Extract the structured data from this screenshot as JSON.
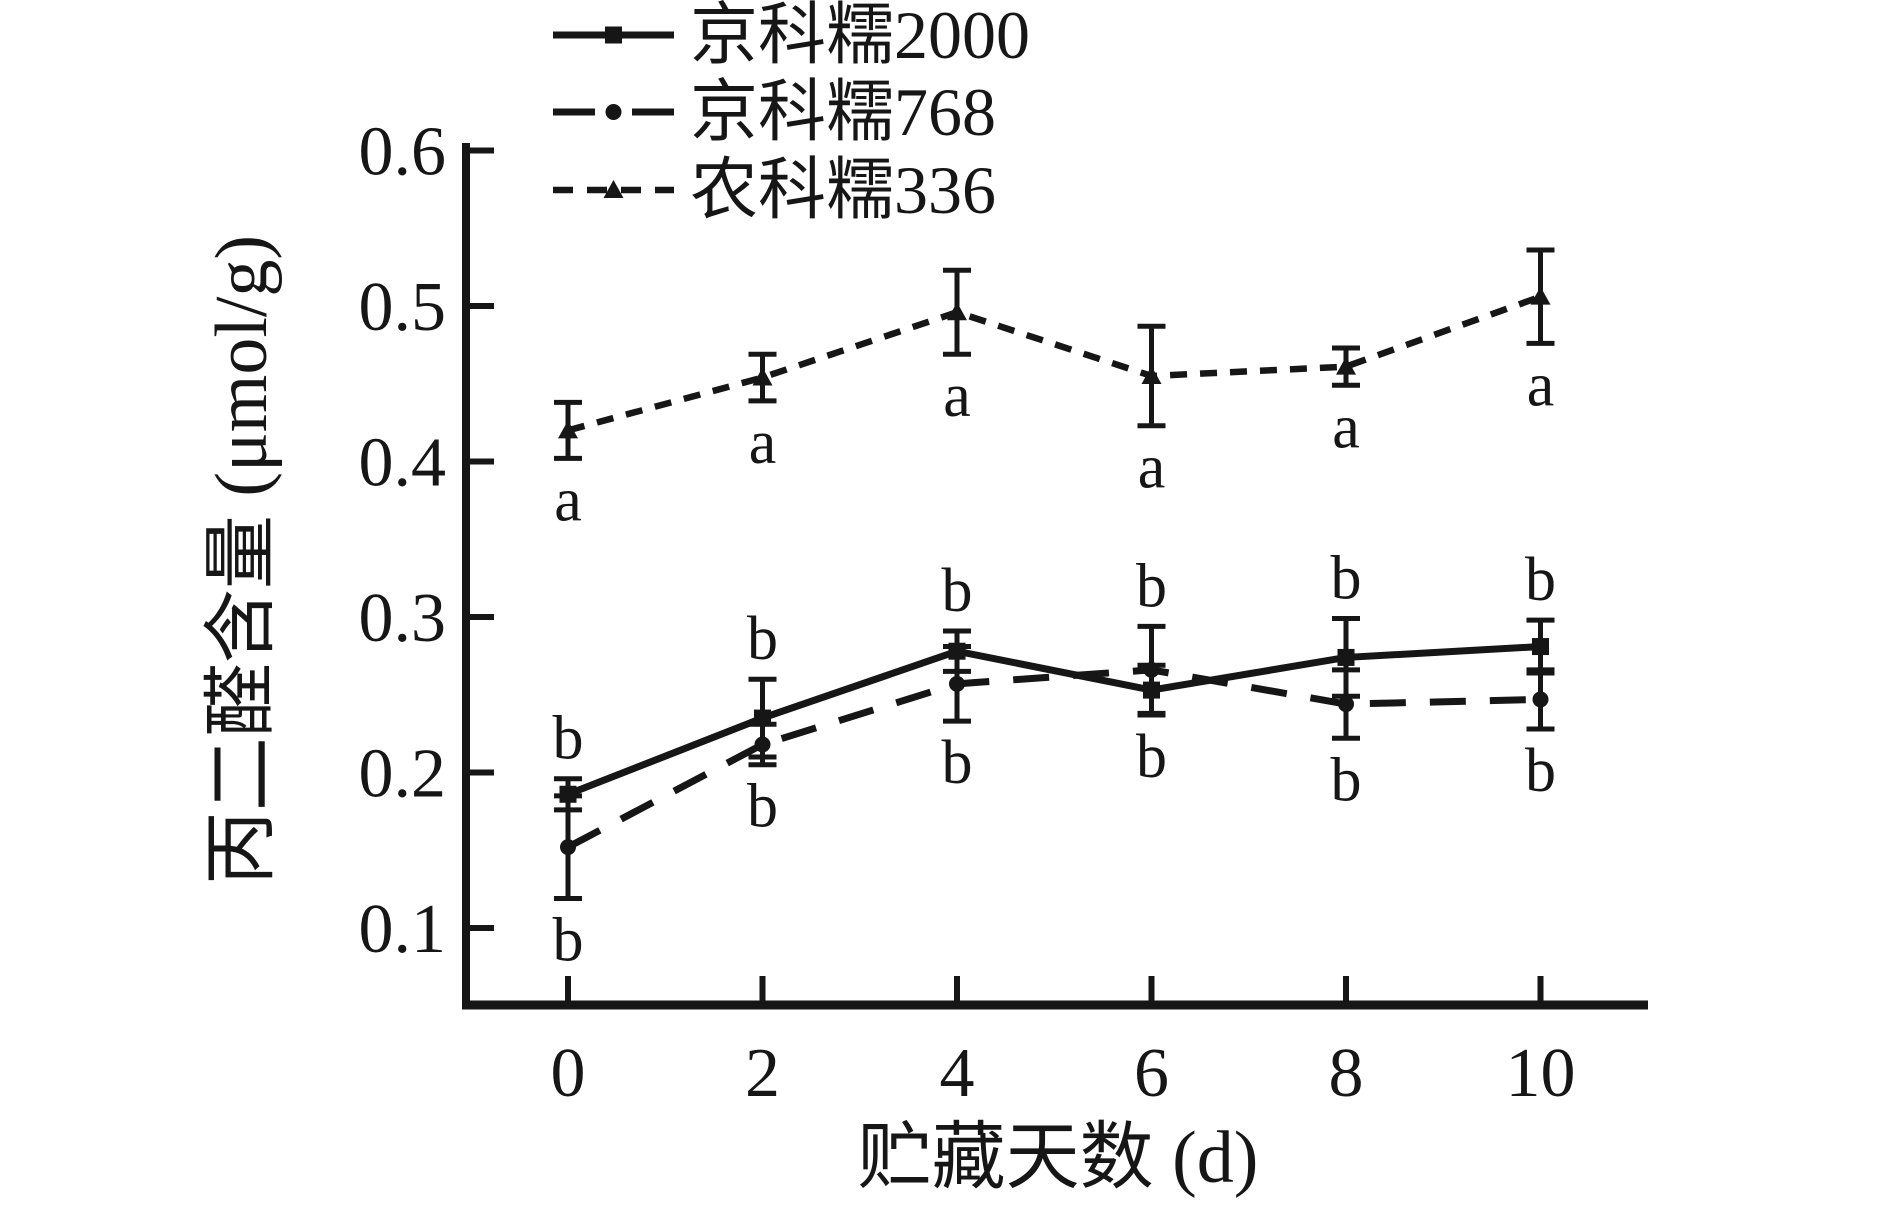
{
  "figure": {
    "background": "#ffffff",
    "ink_color": "#161616"
  },
  "chart_data": {
    "type": "line",
    "title": "",
    "xlabel": "贮藏天数 (d)",
    "ylabel": "丙二醛含量 (μmol/g)",
    "x": [
      0,
      2,
      4,
      6,
      8,
      10
    ],
    "xticks": [
      "0",
      "2",
      "4",
      "6",
      "8",
      "10"
    ],
    "yticks": [
      0.1,
      0.2,
      0.3,
      0.4,
      0.5,
      0.6
    ],
    "xlim": [
      -1.1,
      11.1
    ],
    "ylim": [
      0.05,
      0.61
    ],
    "grid": false,
    "legend_position": "top-left",
    "series": [
      {
        "name": "京科糯2000",
        "marker": "square",
        "line": "solid",
        "values": [
          0.186,
          0.235,
          0.278,
          0.253,
          0.274,
          0.281
        ],
        "errors": [
          0.01,
          0.025,
          0.013,
          0.016,
          0.025,
          0.017
        ],
        "sig_labels": [
          "b",
          "b",
          "b",
          "b",
          "b",
          "b"
        ],
        "sig_positions": [
          "above",
          "above",
          "above",
          "below",
          "above",
          "above"
        ]
      },
      {
        "name": "京科糯768",
        "marker": "circle",
        "line": "long-dash",
        "values": [
          0.152,
          0.218,
          0.257,
          0.266,
          0.244,
          0.247
        ],
        "errors": [
          0.033,
          0.013,
          0.024,
          0.028,
          0.022,
          0.019
        ],
        "sig_labels": [
          "b",
          "b",
          "b",
          "b",
          "b",
          "b"
        ],
        "sig_positions": [
          "below",
          "below",
          "below",
          "above",
          "below",
          "below"
        ]
      },
      {
        "name": "农科糯336",
        "marker": "triangle",
        "line": "short-dash",
        "values": [
          0.42,
          0.454,
          0.496,
          0.455,
          0.461,
          0.506
        ],
        "errors": [
          0.018,
          0.015,
          0.027,
          0.032,
          0.012,
          0.03
        ],
        "sig_labels": [
          "a",
          "a",
          "a",
          "a",
          "a",
          "a"
        ],
        "sig_positions": [
          "below",
          "below",
          "below",
          "below",
          "below",
          "below"
        ]
      }
    ]
  }
}
